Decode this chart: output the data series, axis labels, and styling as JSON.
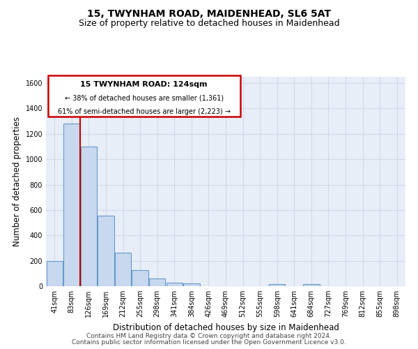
{
  "title_line1": "15, TWYNHAM ROAD, MAIDENHEAD, SL6 5AT",
  "title_line2": "Size of property relative to detached houses in Maidenhead",
  "xlabel": "Distribution of detached houses by size in Maidenhead",
  "ylabel": "Number of detached properties",
  "footer_line1": "Contains HM Land Registry data © Crown copyright and database right 2024.",
  "footer_line2": "Contains public sector information licensed under the Open Government Licence v3.0.",
  "bar_labels": [
    "41sqm",
    "83sqm",
    "126sqm",
    "169sqm",
    "212sqm",
    "255sqm",
    "298sqm",
    "341sqm",
    "384sqm",
    "426sqm",
    "469sqm",
    "512sqm",
    "555sqm",
    "598sqm",
    "641sqm",
    "684sqm",
    "727sqm",
    "769sqm",
    "812sqm",
    "855sqm",
    "898sqm"
  ],
  "bar_values": [
    200,
    1280,
    1100,
    555,
    265,
    125,
    62,
    30,
    20,
    0,
    0,
    0,
    0,
    15,
    0,
    18,
    0,
    0,
    0,
    0,
    0
  ],
  "bar_color": "#c8d8ee",
  "bar_edge_color": "#6699cc",
  "highlight_index": 2,
  "highlight_line_color": "#cc0000",
  "ylim": [
    0,
    1650
  ],
  "yticks": [
    0,
    200,
    400,
    600,
    800,
    1000,
    1200,
    1400,
    1600
  ],
  "grid_color": "#d0d8e8",
  "bg_color": "#e8eef8",
  "annotation_box_title": "15 TWYNHAM ROAD: 124sqm",
  "annotation_line1": "← 38% of detached houses are smaller (1,361)",
  "annotation_line2": "61% of semi-detached houses are larger (2,223) →",
  "annotation_box_color": "#cc0000",
  "annotation_box_fill": "#ffffff",
  "title_fontsize": 10,
  "subtitle_fontsize": 9,
  "axis_label_fontsize": 8.5,
  "tick_fontsize": 7,
  "footer_fontsize": 6.5,
  "ann_title_fontsize": 8,
  "ann_text_fontsize": 7
}
